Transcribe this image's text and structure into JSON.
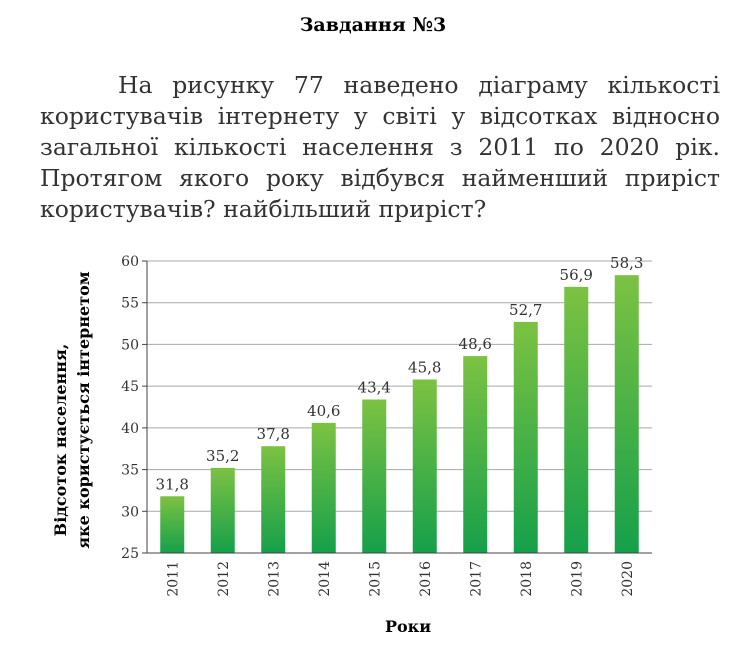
{
  "heading": "Завдання №3",
  "task_text": "На рисунку 77 наведено діаграму кількості користувачів інтернету у світі у відсотках відносно загальної кількості населення з 2011 по 2020 рік. Протягом якого року відбувся найменший приріст користувачів? найбільший приріст?",
  "chart_data": {
    "type": "bar",
    "categories": [
      "2011",
      "2012",
      "2013",
      "2014",
      "2015",
      "2016",
      "2017",
      "2018",
      "2019",
      "2020"
    ],
    "values": [
      31.8,
      35.2,
      37.8,
      40.6,
      43.4,
      45.8,
      48.6,
      52.7,
      56.9,
      58.3
    ],
    "value_labels": [
      "31,8",
      "35,2",
      "37,8",
      "40,6",
      "43,4",
      "45,8",
      "48,6",
      "52,7",
      "56,9",
      "58,3"
    ],
    "ylabel_line1": "Відсоток населення,",
    "ylabel_line2": "яке користується інтернетом",
    "xlabel": "Роки",
    "ylim": [
      25,
      60
    ],
    "yticks": [
      25,
      30,
      35,
      40,
      45,
      50,
      55,
      60
    ],
    "grid": true,
    "colors": {
      "bar_top": "#7cc242",
      "bar_bottom": "#15a04a",
      "grid": "#a8a8a8"
    }
  }
}
